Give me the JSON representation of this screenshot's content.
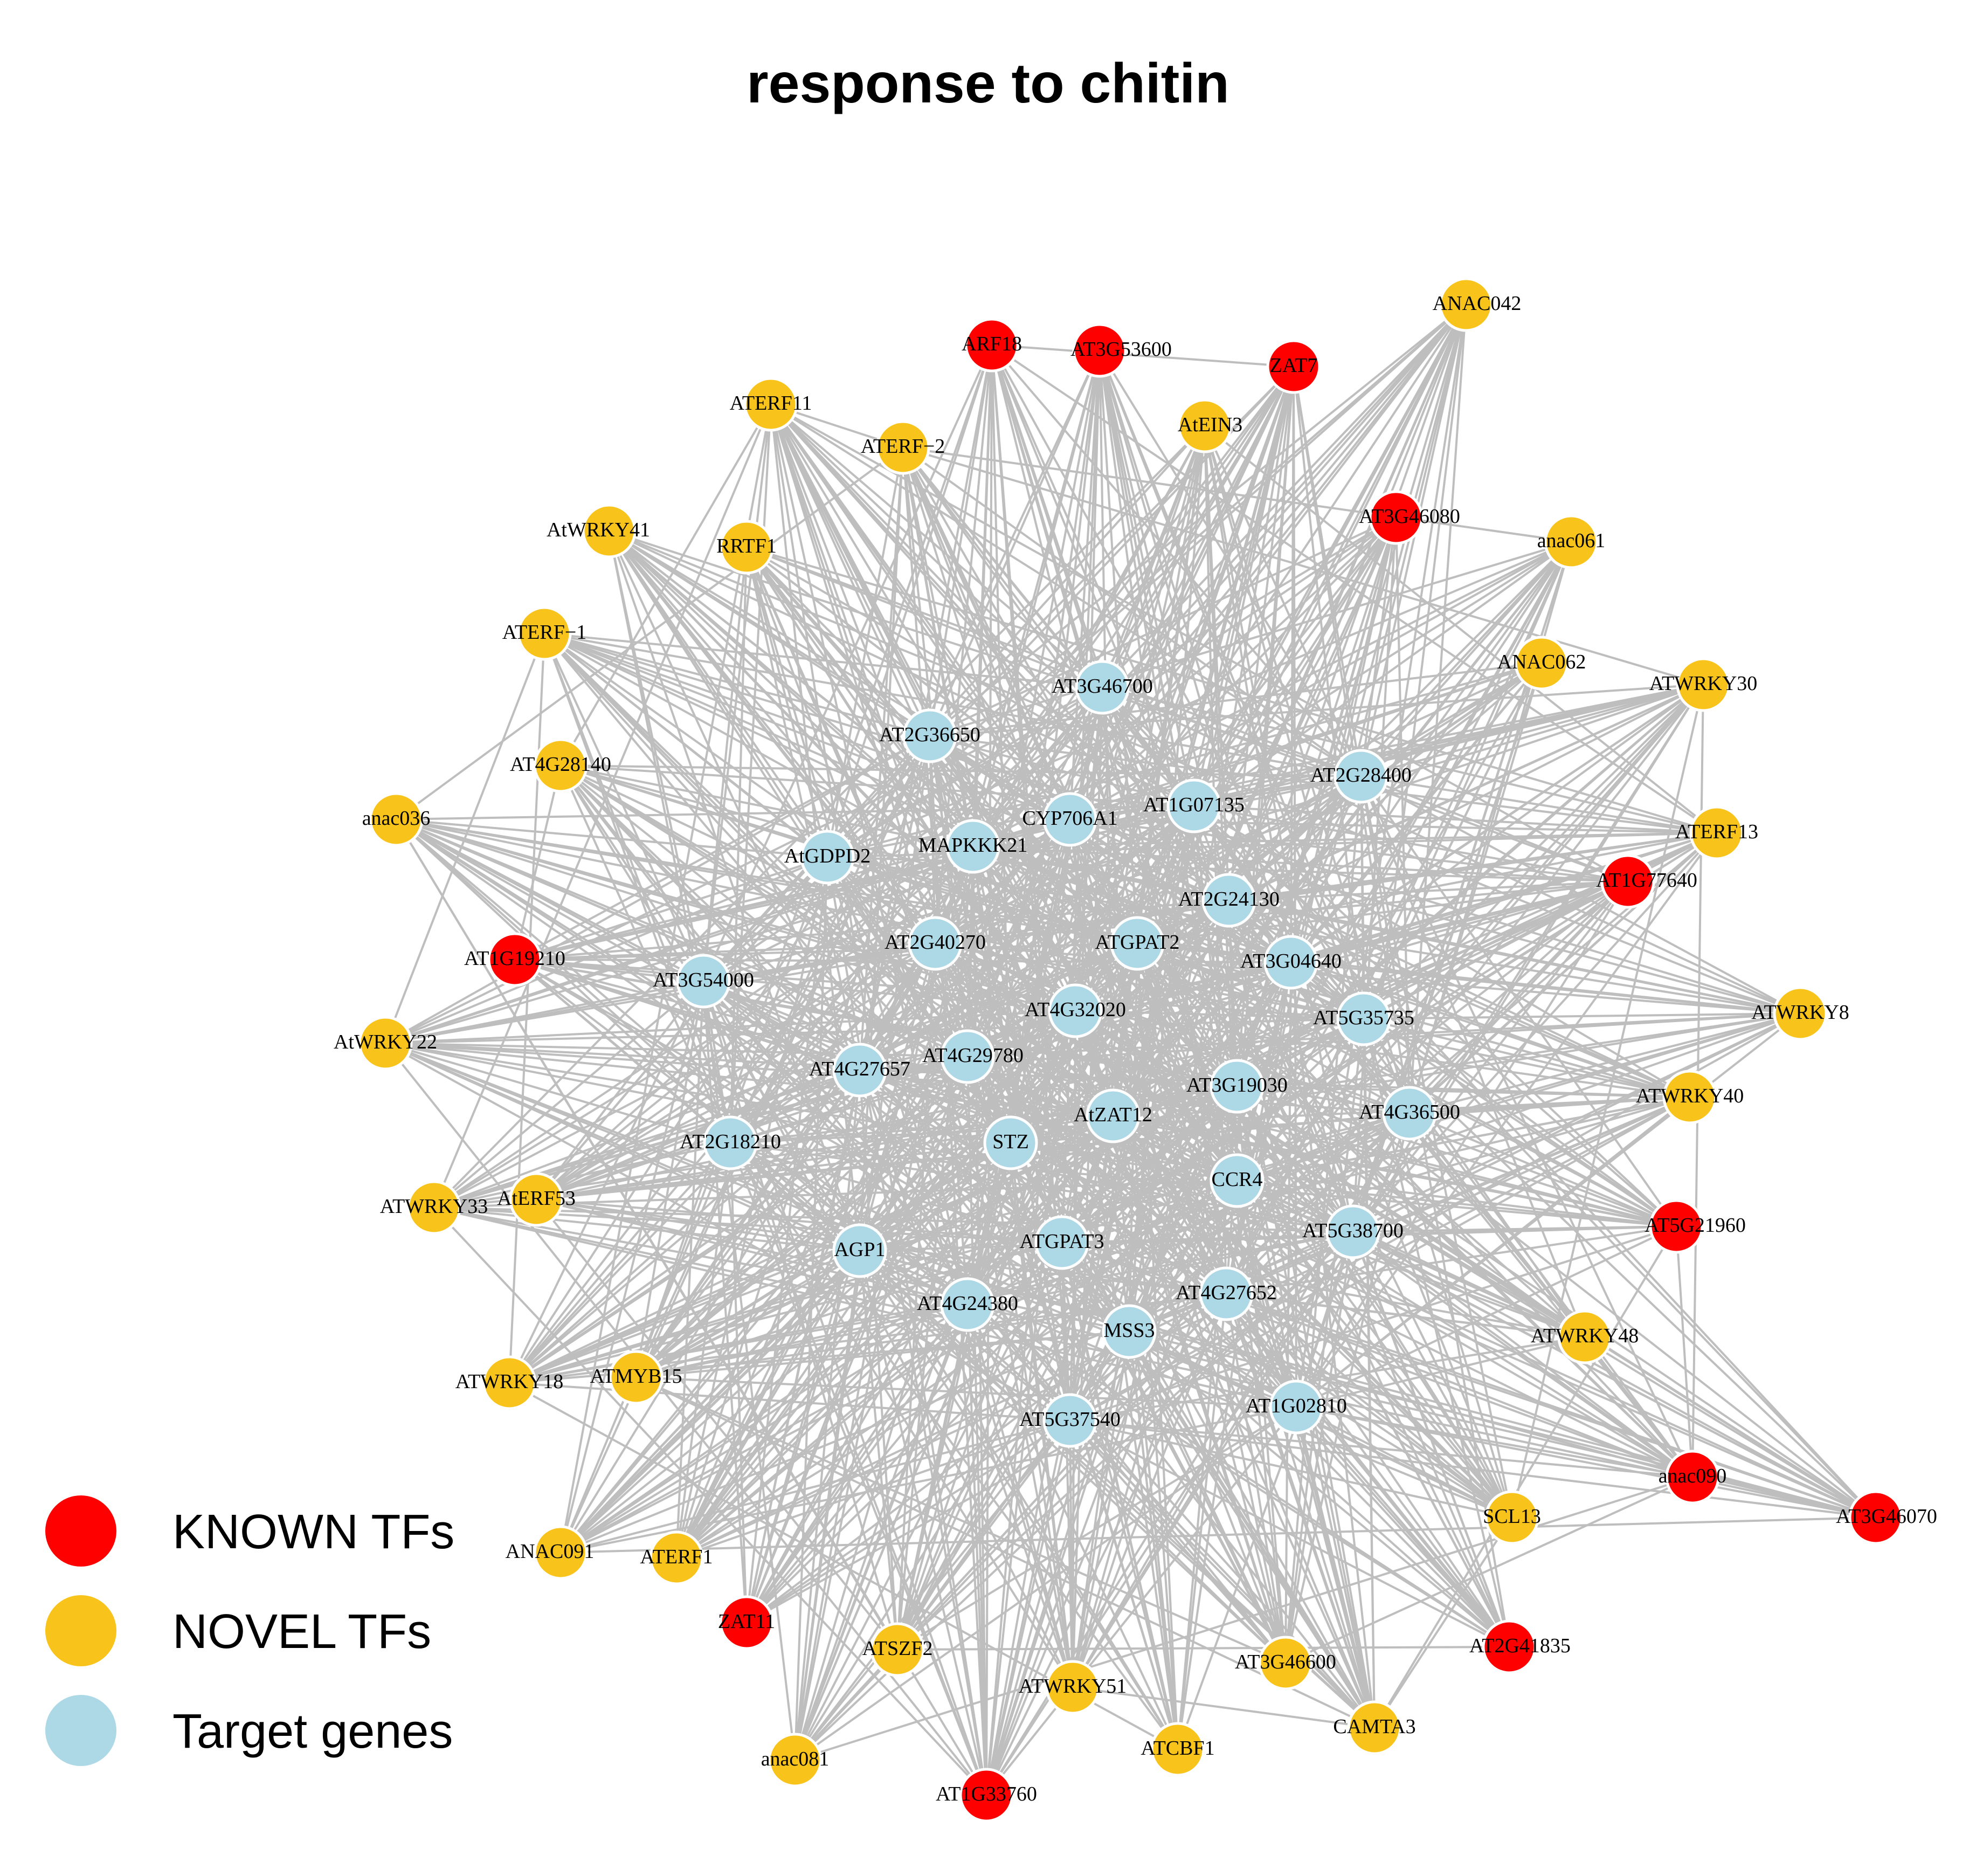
{
  "title": "response to chitin",
  "colors": {
    "known": "#FF0000",
    "novel": "#F8C41C",
    "target": "#ADD8E6",
    "edge": "#BEBEBE",
    "node_stroke": "#FFFFFF"
  },
  "legend": [
    {
      "label": "KNOWN TFs",
      "group": "known"
    },
    {
      "label": "NOVEL TFs",
      "group": "novel"
    },
    {
      "label": "Target genes",
      "group": "target"
    }
  ],
  "nodes": [
    {
      "name": "ARF18",
      "group": "known"
    },
    {
      "name": "AT3G53600",
      "group": "known"
    },
    {
      "name": "ZAT7",
      "group": "known"
    },
    {
      "name": "AT3G46080",
      "group": "known"
    },
    {
      "name": "AT1G77640",
      "group": "known"
    },
    {
      "name": "AT1G19210",
      "group": "known"
    },
    {
      "name": "AT5G21960",
      "group": "known"
    },
    {
      "name": "anac090",
      "group": "known"
    },
    {
      "name": "AT3G46070",
      "group": "known"
    },
    {
      "name": "AT2G41835",
      "group": "known"
    },
    {
      "name": "ZAT11",
      "group": "known"
    },
    {
      "name": "AT1G33760",
      "group": "known"
    },
    {
      "name": "ANAC042",
      "group": "novel"
    },
    {
      "name": "ATERF11",
      "group": "novel"
    },
    {
      "name": "ATERF−2",
      "group": "novel"
    },
    {
      "name": "AtEIN3",
      "group": "novel"
    },
    {
      "name": "AtWRKY41",
      "group": "novel"
    },
    {
      "name": "RRTF1",
      "group": "novel"
    },
    {
      "name": "anac061",
      "group": "novel"
    },
    {
      "name": "ATERF−1",
      "group": "novel"
    },
    {
      "name": "ANAC062",
      "group": "novel"
    },
    {
      "name": "ATWRKY30",
      "group": "novel"
    },
    {
      "name": "AT4G28140",
      "group": "novel"
    },
    {
      "name": "anac036",
      "group": "novel"
    },
    {
      "name": "ATERF13",
      "group": "novel"
    },
    {
      "name": "ATWRKY8",
      "group": "novel"
    },
    {
      "name": "AtWRKY22",
      "group": "novel"
    },
    {
      "name": "ATWRKY40",
      "group": "novel"
    },
    {
      "name": "ATWRKY33",
      "group": "novel"
    },
    {
      "name": "AtERF53",
      "group": "novel"
    },
    {
      "name": "ATWRKY48",
      "group": "novel"
    },
    {
      "name": "ATWRKY18",
      "group": "novel"
    },
    {
      "name": "ATMYB15",
      "group": "novel"
    },
    {
      "name": "SCL13",
      "group": "novel"
    },
    {
      "name": "ANAC091",
      "group": "novel"
    },
    {
      "name": "ATERF1",
      "group": "novel"
    },
    {
      "name": "ATSZF2",
      "group": "novel"
    },
    {
      "name": "ATWRKY51",
      "group": "novel"
    },
    {
      "name": "AT3G46600",
      "group": "novel"
    },
    {
      "name": "CAMTA3",
      "group": "novel"
    },
    {
      "name": "ATCBF1",
      "group": "novel"
    },
    {
      "name": "anac081",
      "group": "novel"
    },
    {
      "name": "AT3G46700",
      "group": "target"
    },
    {
      "name": "AT2G36650",
      "group": "target"
    },
    {
      "name": "AT2G28400",
      "group": "target"
    },
    {
      "name": "CYP706A1",
      "group": "target"
    },
    {
      "name": "AT1G07135",
      "group": "target"
    },
    {
      "name": "MAPKKK21",
      "group": "target"
    },
    {
      "name": "AtGDPD2",
      "group": "target"
    },
    {
      "name": "AT2G24130",
      "group": "target"
    },
    {
      "name": "AT2G40270",
      "group": "target"
    },
    {
      "name": "ATGPAT2",
      "group": "target"
    },
    {
      "name": "AT3G04640",
      "group": "target"
    },
    {
      "name": "AT3G54000",
      "group": "target"
    },
    {
      "name": "AT4G32020",
      "group": "target"
    },
    {
      "name": "AT5G35735",
      "group": "target"
    },
    {
      "name": "AT4G29780",
      "group": "target"
    },
    {
      "name": "AT4G27657",
      "group": "target"
    },
    {
      "name": "AT3G19030",
      "group": "target"
    },
    {
      "name": "AtZAT12",
      "group": "target"
    },
    {
      "name": "AT4G36500",
      "group": "target"
    },
    {
      "name": "AT2G18210",
      "group": "target"
    },
    {
      "name": "STZ",
      "group": "target"
    },
    {
      "name": "CCR4",
      "group": "target"
    },
    {
      "name": "AGP1",
      "group": "target"
    },
    {
      "name": "ATGPAT3",
      "group": "target"
    },
    {
      "name": "AT5G38700",
      "group": "target"
    },
    {
      "name": "AT4G27652",
      "group": "target"
    },
    {
      "name": "AT4G24380",
      "group": "target"
    },
    {
      "name": "MSS3",
      "group": "target"
    },
    {
      "name": "AT1G02810",
      "group": "target"
    },
    {
      "name": "AT5G37540",
      "group": "target"
    }
  ]
}
